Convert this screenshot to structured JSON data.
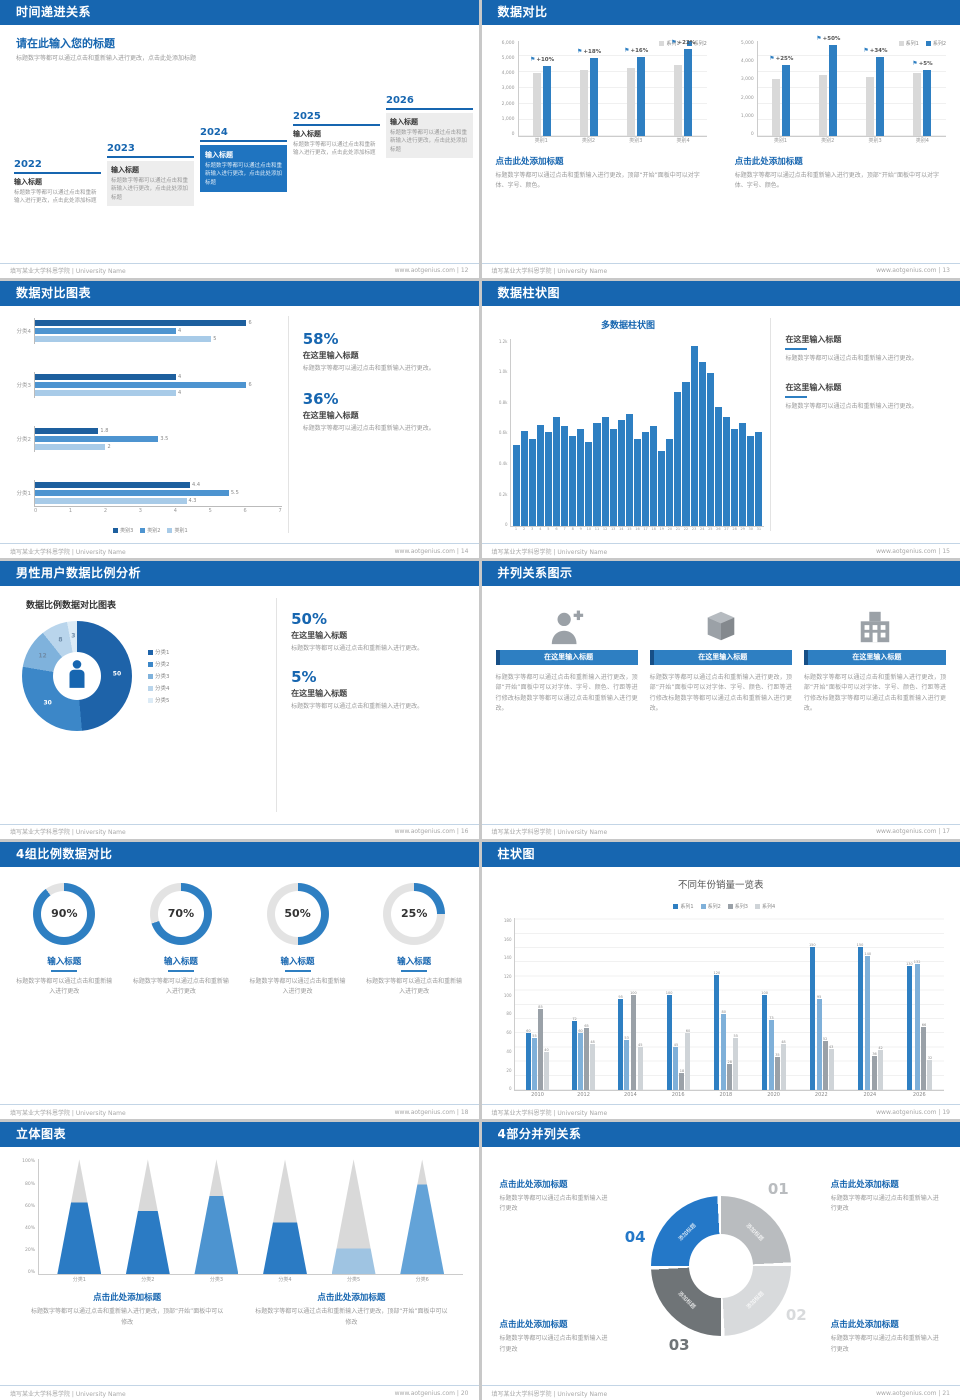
{
  "theme": {
    "header_blue": "#1766b0",
    "accent": "#2e7fc2"
  },
  "footer_left": "填写某业大学科恩学院 | University Name",
  "slides": {
    "s1": {
      "header": "时间递进关系",
      "footer_right": "www.aotgenius.com | 12",
      "title": "请在此输入您的标题",
      "subtitle": "标题数字等都可以通过点击和重新输入进行更改，点击此处添加标题",
      "steps": [
        {
          "year": "2022",
          "label": "输入标题",
          "text": "标题数字等都可以通过点击和重新输入进行更改，点击此处添加标题",
          "style": "plain"
        },
        {
          "year": "2023",
          "label": "输入标题",
          "text": "标题数字等都可以通过点击和重新输入进行更改，点击此处添加标题",
          "style": "gray"
        },
        {
          "year": "2024",
          "label": "输入标题",
          "text": "标题数字等都可以通过点击和重新输入进行更改，点击此处添加标题",
          "style": "blue"
        },
        {
          "year": "2025",
          "label": "输入标题",
          "text": "标题数字等都可以通过点击和重新输入进行更改，点击此处添加标题",
          "style": "plain"
        },
        {
          "year": "2026",
          "label": "输入标题",
          "text": "标题数字等都可以通过点击和重新输入进行更改，点击此处添加标题",
          "style": "gray"
        }
      ]
    },
    "s2": {
      "header": "数据对比",
      "footer_right": "www.aotgenius.com | 13",
      "legend": [
        "系列1",
        "系列2"
      ],
      "series_colors": [
        "#d9d9d9",
        "#2e7fc2"
      ],
      "charts": [
        {
          "type": "bar",
          "categories": [
            "类别1",
            "类别2",
            "类别3",
            "类别4"
          ],
          "yticks": [
            "6,000",
            "5,000",
            "4,000",
            "3,000",
            "2,000",
            "1,000",
            "0"
          ],
          "ymax": 6000,
          "series": [
            {
              "name": "系列1",
              "values": [
                4000,
                4150,
                4300,
                4500
              ]
            },
            {
              "name": "系列2",
              "values": [
                4400,
                4900,
                5000,
                5500
              ]
            }
          ],
          "labels": [
            "+10%",
            "+18%",
            "+16%",
            "+22%"
          ],
          "caption_title": "点击此处添加标题",
          "caption_text": "标题数字等都可以通过点击和重新输入进行更改，顶部“开始”面板中可以对字体、字号、颜色。"
        },
        {
          "type": "bar",
          "categories": [
            "类别1",
            "类别2",
            "类别3",
            "类别4"
          ],
          "yticks": [
            "5,000",
            "4,000",
            "3,000",
            "2,000",
            "1,000",
            "0"
          ],
          "ymax": 5000,
          "series": [
            {
              "name": "系列1",
              "values": [
                3000,
                3200,
                3100,
                3300
              ]
            },
            {
              "name": "系列2",
              "values": [
                3750,
                4800,
                4150,
                3450
              ]
            }
          ],
          "labels": [
            "+25%",
            "+50%",
            "+34%",
            "+5%"
          ],
          "caption_title": "点击此处添加标题",
          "caption_text": "标题数字等都可以通过点击和重新输入进行更改，顶部“开始”面板中可以对字体、字号、颜色。"
        }
      ]
    },
    "s3": {
      "header": "数据对比图表",
      "footer_right": "www.aotgenius.com | 14",
      "chart": {
        "type": "bar",
        "orientation": "horizontal",
        "groups": [
          "分类4",
          "分类3",
          "分类2",
          "分类1"
        ],
        "series_names": [
          "类别3",
          "类别2",
          "类别1"
        ],
        "colors": [
          "#1d5f9e",
          "#4d94d0",
          "#a8cbe8"
        ],
        "values": [
          [
            6,
            4,
            5
          ],
          [
            4,
            6,
            4
          ],
          [
            1.8,
            3.5,
            2
          ],
          [
            4.4,
            5.5,
            4.3
          ]
        ],
        "xticks": [
          "0",
          "1",
          "2",
          "3",
          "4",
          "5",
          "6",
          "7"
        ],
        "xmax": 7
      },
      "stats": [
        {
          "percent": "58%",
          "title": "在这里输入标题",
          "text": "标题数字等都可以通过点击和重新输入进行更改。"
        },
        {
          "percent": "36%",
          "title": "在这里输入标题",
          "text": "标题数字等都可以通过点击和重新输入进行更改。"
        }
      ]
    },
    "s4": {
      "header": "数据柱状图",
      "footer_right": "www.aotgenius.com | 15",
      "chart": {
        "type": "bar",
        "title": "多数据柱状图",
        "color": "#2e7fc2",
        "x": [
          "1",
          "2",
          "3",
          "4",
          "5",
          "6",
          "7",
          "8",
          "9",
          "10",
          "11",
          "12",
          "13",
          "14",
          "15",
          "16",
          "17",
          "18",
          "19",
          "20",
          "21",
          "22",
          "23",
          "24",
          "25",
          "26",
          "27",
          "28",
          "29",
          "30",
          "31"
        ],
        "values": [
          520,
          610,
          560,
          650,
          600,
          700,
          640,
          580,
          620,
          540,
          660,
          700,
          620,
          680,
          720,
          560,
          600,
          640,
          480,
          560,
          860,
          920,
          1150,
          1050,
          980,
          760,
          700,
          620,
          660,
          580,
          600
        ],
        "yticks": [
          "1.2k",
          "1.0k",
          "0.8k",
          "0.6k",
          "0.4k",
          "0.2k",
          "0"
        ],
        "ymax": 1200
      },
      "blocks": [
        {
          "title": "在这里输入标题",
          "text": "标题数字等都可以通过点击和重新输入进行更改。"
        },
        {
          "title": "在这里输入标题",
          "text": "标题数字等都可以通过点击和重新输入进行更改。"
        }
      ]
    },
    "s5": {
      "header": "男性用户数据比例分析",
      "footer_right": "www.aotgenius.com | 16",
      "chart": {
        "type": "pie",
        "title": "数据比例数据对比图表",
        "labels": [
          "分类1",
          "分类2",
          "分类3",
          "分类4",
          "分类5"
        ],
        "values": [
          50,
          30,
          12,
          8,
          3
        ],
        "colors": [
          "#1e63a9",
          "#3c87c8",
          "#7fb2dc",
          "#b9d5ec",
          "#dcebf6"
        ]
      },
      "stats": [
        {
          "percent": "50%",
          "title": "在这里输入标题",
          "text": "标题数字等都可以通过点击和重新输入进行更改。"
        },
        {
          "percent": "5%",
          "title": "在这里输入标题",
          "text": "标题数字等都可以通过点击和重新输入进行更改。"
        }
      ]
    },
    "s6": {
      "header": "并列关系图示",
      "footer_right": "www.aotgenius.com | 17",
      "items": [
        {
          "icon": "nurse-icon",
          "button": "在这里输入标题",
          "text": "标题数字等都可以通过点击和重新输入进行更改，顶部“开始”面板中可以对字体、字号、颜色、行距等进行修改标题数字等都可以通过点击和重新输入进行更改。"
        },
        {
          "icon": "cube-icon",
          "button": "在这里输入标题",
          "text": "标题数字等都可以通过点击和重新输入进行更改，顶部“开始”面板中可以对字体、字号、颜色、行距等进行修改标题数字等都可以通过点击和重新输入进行更改。"
        },
        {
          "icon": "building-icon",
          "button": "在这里输入标题",
          "text": "标题数字等都可以通过点击和重新输入进行更改，顶部“开始”面板中可以对字体、字号、颜色、行距等进行修改标题数字等都可以通过点击和重新输入进行更改。"
        }
      ]
    },
    "s7": {
      "header": "4组比例数据对比",
      "footer_right": "www.aotgenius.com | 18",
      "accent": "#2e7fc2",
      "items": [
        {
          "percent": 90,
          "percent_label": "90%",
          "title": "输入标题",
          "text": "标题数字等都可以通过点击和重新输入进行更改"
        },
        {
          "percent": 70,
          "percent_label": "70%",
          "title": "输入标题",
          "text": "标题数字等都可以通过点击和重新输入进行更改"
        },
        {
          "percent": 50,
          "percent_label": "50%",
          "title": "输入标题",
          "text": "标题数字等都可以通过点击和重新输入进行更改"
        },
        {
          "percent": 25,
          "percent_label": "25%",
          "title": "输入标题",
          "text": "标题数字等都可以通过点击和重新输入进行更改"
        }
      ]
    },
    "s8": {
      "header": "柱状图",
      "footer_right": "www.aotgenius.com | 19",
      "chart": {
        "type": "bar",
        "title": "不同年份销量一览表",
        "categories": [
          "2010",
          "2012",
          "2014",
          "2016",
          "2018",
          "2020",
          "2022",
          "2024",
          "2026"
        ],
        "series": [
          {
            "name": "系列1",
            "color": "#2e7fc2",
            "values": [
              60,
              72,
              95,
              100,
              120,
              100,
              150,
              150,
              130
            ]
          },
          {
            "name": "系列2",
            "color": "#7fb0d9",
            "values": [
              55,
              60,
              53,
              45,
              80,
              73,
              95,
              140,
              132
            ]
          },
          {
            "name": "系列3",
            "color": "#9aa1a8",
            "values": [
              85,
              65,
              100,
              18,
              28,
              35,
              52,
              36,
              66
            ]
          },
          {
            "name": "系列4",
            "color": "#cfd4d8",
            "values": [
              40,
              48,
              45,
              60,
              55,
              48,
              43,
              42,
              32
            ]
          }
        ],
        "yticks": [
          "180",
          "160",
          "140",
          "120",
          "100",
          "80",
          "60",
          "40",
          "20",
          "0"
        ],
        "ymax": 180
      }
    },
    "s9": {
      "header": "立体图表",
      "footer_right": "www.aotgenius.com | 20",
      "chart": {
        "type": "cone",
        "categories": [
          "分类1",
          "分类2",
          "分类3",
          "分类4",
          "分类5",
          "分类6"
        ],
        "fill_percent": [
          62,
          55,
          68,
          45,
          22,
          78
        ],
        "colors": [
          "#2b7bc4",
          "#2b7bc4",
          "#4d94d0",
          "#2b7bc4",
          "#9fc4e2",
          "#63a3d8"
        ],
        "yticks": [
          "100%",
          "80%",
          "60%",
          "40%",
          "20%",
          "0%"
        ]
      },
      "captions": [
        {
          "title": "点击此处添加标题",
          "text": "标题数字等都可以通过点击和重新输入进行更改，顶部“开始”面板中可以修改"
        },
        {
          "title": "点击此处添加标题",
          "text": "标题数字等都可以通过点击和重新输入进行更改，顶部“开始”面板中可以修改"
        }
      ]
    },
    "s10": {
      "header": "4部分并列关系",
      "footer_right": "www.aotgenius.com | 21",
      "wheel": {
        "segment_label": "添加标题",
        "segments": [
          {
            "num": "01",
            "color": "#b9bcbf"
          },
          {
            "num": "02",
            "color": "#d8dadc"
          },
          {
            "num": "03",
            "color": "#6f7477"
          },
          {
            "num": "04",
            "color": "#2478c8"
          }
        ]
      },
      "blocks": [
        {
          "title": "点击此处添加标题",
          "text": "标题数字等都可以通过点击和重新输入进行更改"
        },
        {
          "title": "点击此处添加标题",
          "text": "标题数字等都可以通过点击和重新输入进行更改"
        },
        {
          "title": "点击此处添加标题",
          "text": "标题数字等都可以通过点击和重新输入进行更改"
        },
        {
          "title": "点击此处添加标题",
          "text": "标题数字等都可以通过点击和重新输入进行更改"
        }
      ]
    }
  }
}
